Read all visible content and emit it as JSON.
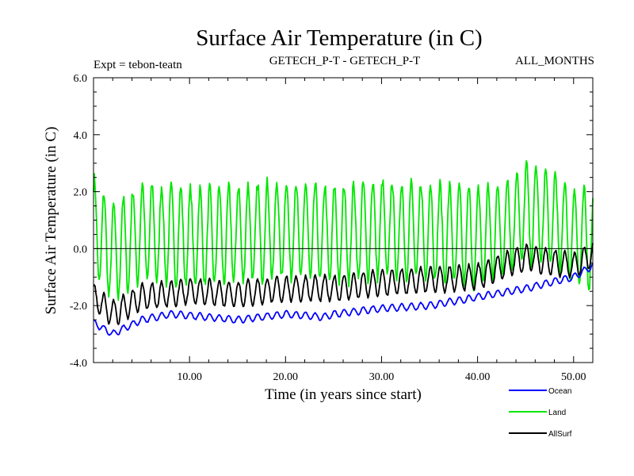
{
  "header": {
    "title": "Surface Air Temperature (in C)",
    "expt": "Expt = tebon-teatn",
    "comparison": "GETECH_P-T - GETECH_P-T",
    "months": "ALL_MONTHS"
  },
  "chart_data": {
    "type": "line",
    "title": "Surface Air Temperature (in C)",
    "xlabel": "Time (in years since start)",
    "ylabel": "Surface Air Temperature (in C)",
    "xlim": [
      0,
      52
    ],
    "ylim": [
      -4,
      6
    ],
    "xticks": [
      10,
      20,
      30,
      40,
      50
    ],
    "xtick_labels": [
      "10.00",
      "20.00",
      "30.00",
      "40.00",
      "50.00"
    ],
    "yticks": [
      -4,
      -2,
      0,
      2,
      4,
      6
    ],
    "ytick_labels": [
      "-4.0",
      "-2.0",
      "0.0",
      "2.0",
      "4.0",
      "6.0"
    ],
    "zero_line": 0,
    "legend_position": "bottom-right",
    "series": [
      {
        "name": "Ocean",
        "color": "#0000ff",
        "base": [
          [
            0,
            -2.6
          ],
          [
            2,
            -3.0
          ],
          [
            5,
            -2.5
          ],
          [
            8,
            -2.3
          ],
          [
            12,
            -2.4
          ],
          [
            15,
            -2.5
          ],
          [
            20,
            -2.3
          ],
          [
            24,
            -2.4
          ],
          [
            25,
            -2.3
          ],
          [
            30,
            -2.1
          ],
          [
            35,
            -2.0
          ],
          [
            40,
            -1.7
          ],
          [
            45,
            -1.4
          ],
          [
            50,
            -1.0
          ],
          [
            52,
            -0.6
          ]
        ],
        "amplitude": 0.12
      },
      {
        "name": "Land",
        "color": "#00e600",
        "base": [
          [
            0,
            0.8
          ],
          [
            2,
            -0.2
          ],
          [
            5,
            0.6
          ],
          [
            10,
            0.4
          ],
          [
            15,
            0.5
          ],
          [
            20,
            0.7
          ],
          [
            25,
            0.5
          ],
          [
            30,
            0.7
          ],
          [
            35,
            0.6
          ],
          [
            40,
            0.4
          ],
          [
            42,
            0.6
          ],
          [
            45,
            1.3
          ],
          [
            48,
            1.0
          ],
          [
            50,
            0.5
          ],
          [
            52,
            0.3
          ]
        ],
        "amplitude": 1.7
      },
      {
        "name": "AllSurf",
        "color": "#000000",
        "base": [
          [
            0,
            -1.7
          ],
          [
            2,
            -2.3
          ],
          [
            5,
            -1.7
          ],
          [
            10,
            -1.5
          ],
          [
            15,
            -1.6
          ],
          [
            20,
            -1.4
          ],
          [
            25,
            -1.4
          ],
          [
            30,
            -1.2
          ],
          [
            35,
            -1.1
          ],
          [
            40,
            -1.0
          ],
          [
            42,
            -0.7
          ],
          [
            45,
            -0.3
          ],
          [
            48,
            -0.5
          ],
          [
            50,
            -0.6
          ],
          [
            52,
            -0.2
          ]
        ],
        "amplitude": 0.45
      }
    ]
  }
}
